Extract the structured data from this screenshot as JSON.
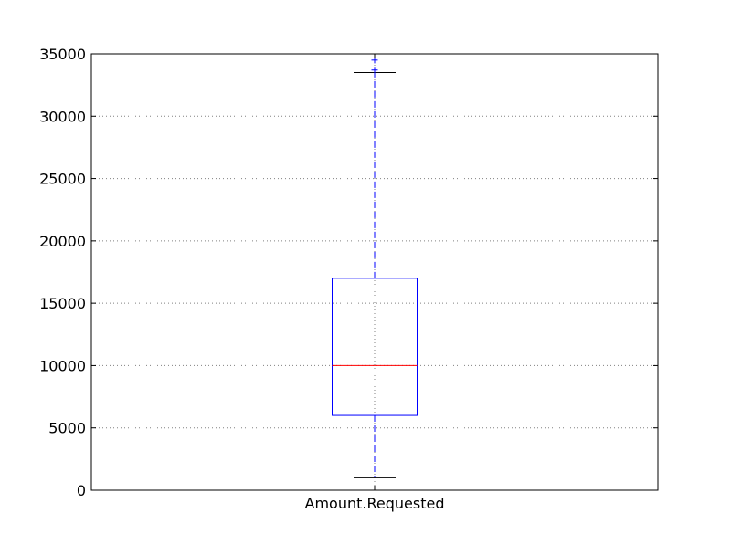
{
  "chart_data": {
    "type": "box",
    "categories": [
      "Amount.Requested"
    ],
    "boxes": [
      {
        "label": "Amount.Requested",
        "whisker_low": 1000,
        "q1": 6000,
        "median": 10000,
        "q3": 17000,
        "whisker_high": 33500,
        "outliers": [
          33700,
          34500
        ]
      }
    ],
    "title": "",
    "xlabel": "",
    "ylabel": "",
    "ylim": [
      0,
      35000
    ],
    "yticks": [
      0,
      5000,
      10000,
      15000,
      20000,
      25000,
      30000,
      35000
    ],
    "grid": true,
    "colors": {
      "box": "#0000ff",
      "median": "#ff0000",
      "whisker": "#0000ff",
      "cap": "#000000",
      "flier": "#0000ff",
      "grid": "#808080"
    }
  }
}
